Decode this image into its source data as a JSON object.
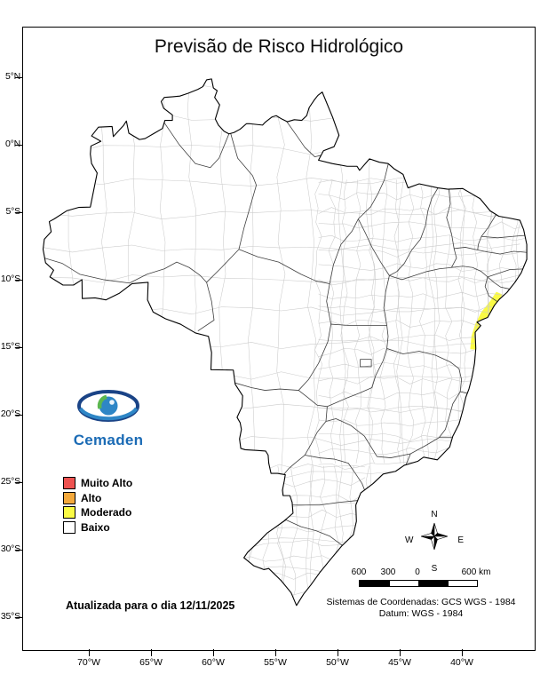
{
  "title": "Previsão de Risco Hidrológico",
  "logo": {
    "text": "Cemaden"
  },
  "legend": {
    "items": [
      {
        "label": "Muito Alto",
        "color": "#ee5250"
      },
      {
        "label": "Alto",
        "color": "#f4a93c"
      },
      {
        "label": "Moderado",
        "color": "#fbfb45"
      },
      {
        "label": "Baixo",
        "color": "#ffffff"
      }
    ]
  },
  "map": {
    "highlight_color": "#fbfb45"
  },
  "update_note": "Atualizada para o dia 12/11/2025",
  "compass": {
    "north": "N",
    "south": "S",
    "east": "E",
    "west": "W"
  },
  "scale_bar": {
    "labels": [
      "600",
      "300",
      "0",
      "600 km"
    ]
  },
  "projection": {
    "line1": "Sistemas de Coordenadas: GCS WGS - 1984",
    "line2": "Datum: WGS - 1984"
  },
  "axes": {
    "latitude": [
      "5°N",
      "0°N",
      "5°S",
      "10°S",
      "15°S",
      "20°S",
      "25°S",
      "30°S",
      "35°S"
    ],
    "longitude": [
      "70°W",
      "65°W",
      "60°W",
      "55°W",
      "50°W",
      "45°W",
      "40°W"
    ]
  }
}
